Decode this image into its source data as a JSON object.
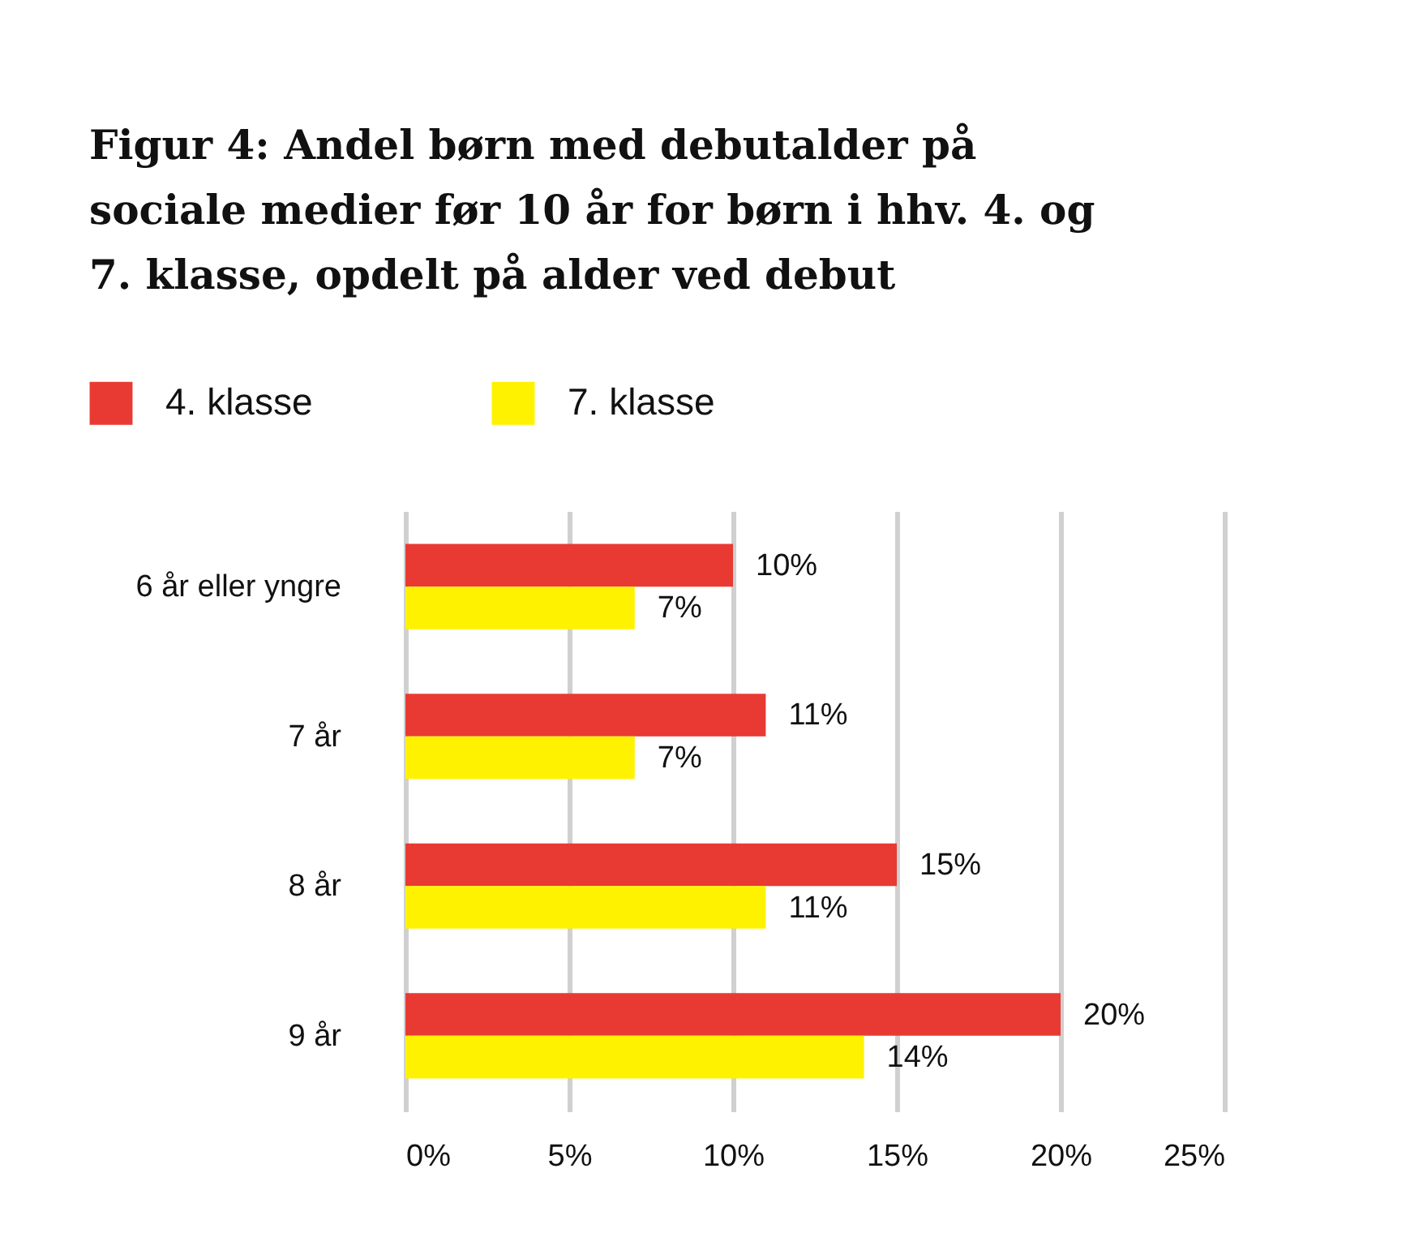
{
  "chart_data": {
    "type": "bar",
    "orientation": "horizontal",
    "title": "Figur 4: Andel børn med debutalder på sociale medier før 10 år for børn i hhv. 4. og 7. klasse, opdelt på alder ved debut",
    "categories": [
      "6 år eller yngre",
      "7 år",
      "8 år",
      "9 år"
    ],
    "series": [
      {
        "name": "4. klasse",
        "color": "#e83a32",
        "values": [
          10,
          11,
          15,
          20
        ],
        "value_labels": [
          "10%",
          "11%",
          "15%",
          "20%"
        ]
      },
      {
        "name": "7. klasse",
        "color": "#fff200",
        "values": [
          7,
          7,
          11,
          14
        ],
        "value_labels": [
          "7%",
          "7%",
          "11%",
          "14%"
        ]
      }
    ],
    "xlim": [
      0,
      25
    ],
    "xticks": [
      {
        "value": 0,
        "label": "0%"
      },
      {
        "value": 5,
        "label": "5%"
      },
      {
        "value": 10,
        "label": "10%"
      },
      {
        "value": 15,
        "label": "15%"
      },
      {
        "value": 20,
        "label": "20%"
      },
      {
        "value": 25,
        "label": "25%"
      }
    ],
    "grid": "x",
    "legend": "top left"
  }
}
